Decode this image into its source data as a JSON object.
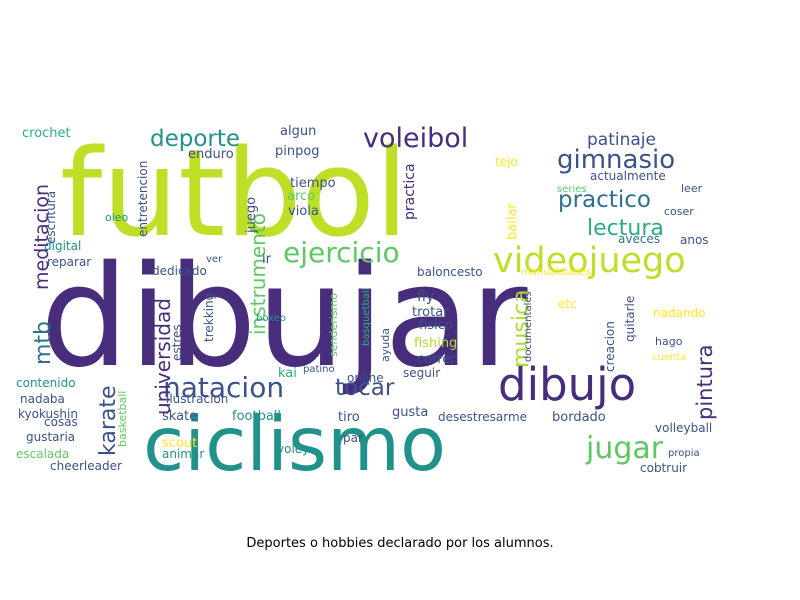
{
  "caption": "Deportes o hobbies declarado por los alumnos.",
  "palette": [
    "#440154",
    "#482878",
    "#3e4a89",
    "#31688e",
    "#26828e",
    "#1f9e89",
    "#35b779",
    "#6ece58",
    "#b5de2b",
    "#fde725"
  ],
  "words": [
    {
      "text": "futbol",
      "color": "#bddf26"
    },
    {
      "text": "dibujar",
      "color": "#472d7b"
    },
    {
      "text": "ciclismo",
      "color": "#21918c"
    },
    {
      "text": "dibujo",
      "color": "#472d7b"
    },
    {
      "text": "videojuego",
      "color": "#bddf26"
    },
    {
      "text": "ejercicio",
      "color": "#5ec962"
    },
    {
      "text": "natacion",
      "color": "#3b528b"
    },
    {
      "text": "voleibol",
      "color": "#472d7b"
    },
    {
      "text": "gimnasio",
      "color": "#3b528b"
    },
    {
      "text": "deporte",
      "color": "#21918c"
    },
    {
      "text": "practico",
      "color": "#2c728e"
    },
    {
      "text": "lectura",
      "color": "#28ae80"
    },
    {
      "text": "jugar",
      "color": "#5ec962"
    },
    {
      "text": "tocar",
      "color": "#3b528b"
    },
    {
      "text": "patinaje",
      "color": "#3b528b"
    },
    {
      "text": "instrumento",
      "color": "#5ec962"
    },
    {
      "text": "universidad",
      "color": "#472d7b"
    },
    {
      "text": "karate",
      "color": "#3b528b"
    },
    {
      "text": "mtb",
      "color": "#2c728e"
    },
    {
      "text": "meditacion",
      "color": "#472d7b"
    },
    {
      "text": "musica",
      "color": "#addc30"
    },
    {
      "text": "pintura",
      "color": "#472d7b"
    },
    {
      "text": "crochet",
      "color": "#28ae80"
    },
    {
      "text": "escritura",
      "color": "#3b528b"
    },
    {
      "text": "oleo",
      "color": "#21918c"
    },
    {
      "text": "enduro",
      "color": "#3b528b"
    },
    {
      "text": "entretencion",
      "color": "#3b528b"
    },
    {
      "text": "algun",
      "color": "#3b528b"
    },
    {
      "text": "pinpog",
      "color": "#3b528b"
    },
    {
      "text": "tiempo",
      "color": "#3b528b"
    },
    {
      "text": "arco",
      "color": "#5ec962"
    },
    {
      "text": "viola",
      "color": "#3b528b"
    },
    {
      "text": "juego",
      "color": "#3b528b"
    },
    {
      "text": "practica",
      "color": "#472d7b"
    },
    {
      "text": "tejo",
      "color": "#fde725"
    },
    {
      "text": "bailar",
      "color": "#fde725"
    },
    {
      "text": "actualmente",
      "color": "#3b528b"
    },
    {
      "text": "series",
      "color": "#5ec962"
    },
    {
      "text": "leer",
      "color": "#3b528b"
    },
    {
      "text": "coser",
      "color": "#3b528b"
    },
    {
      "text": "aveces",
      "color": "#2c728e"
    },
    {
      "text": "anos",
      "color": "#3b528b"
    },
    {
      "text": "digital",
      "color": "#21918c"
    },
    {
      "text": "reparar",
      "color": "#3b528b"
    },
    {
      "text": "dedicado",
      "color": "#3b528b"
    },
    {
      "text": "ver",
      "color": "#3b528b"
    },
    {
      "text": "ir",
      "color": "#3b528b"
    },
    {
      "text": "baloncesto",
      "color": "#3b528b"
    },
    {
      "text": "manualidades",
      "color": "#fde725"
    },
    {
      "text": "trekking",
      "color": "#3b528b"
    },
    {
      "text": "basquetball",
      "color": "#28ae80"
    },
    {
      "text": "fly",
      "color": "#3b528b"
    },
    {
      "text": "etc",
      "color": "#fde725"
    },
    {
      "text": "trotar",
      "color": "#3b528b"
    },
    {
      "text": "quitarle",
      "color": "#3b528b"
    },
    {
      "text": "nadando",
      "color": "#fde725"
    },
    {
      "text": "creacion",
      "color": "#3b528b"
    },
    {
      "text": "documentales",
      "color": "#3b528b"
    },
    {
      "text": "estres",
      "color": "#3b528b"
    },
    {
      "text": "boxeo",
      "color": "#21918c"
    },
    {
      "text": "senderismo",
      "color": "#5ec962"
    },
    {
      "text": "fisico",
      "color": "#3b528b"
    },
    {
      "text": "fishing",
      "color": "#addc30"
    },
    {
      "text": "correr",
      "color": "#3b528b"
    },
    {
      "text": "hago",
      "color": "#3b528b"
    },
    {
      "text": "cuenta",
      "color": "#fde725"
    },
    {
      "text": "ayuda",
      "color": "#3b528b"
    },
    {
      "text": "kai",
      "color": "#28ae80"
    },
    {
      "text": "patino",
      "color": "#3b528b"
    },
    {
      "text": "seguir",
      "color": "#3b528b"
    },
    {
      "text": "online",
      "color": "#3b528b"
    },
    {
      "text": "contenido",
      "color": "#21918c"
    },
    {
      "text": "nadaba",
      "color": "#3b528b"
    },
    {
      "text": "kyokushin",
      "color": "#3b528b"
    },
    {
      "text": "basketball",
      "color": "#5ec962"
    },
    {
      "text": "ilustracion",
      "color": "#3b528b"
    },
    {
      "text": "skate",
      "color": "#3b528b"
    },
    {
      "text": "football",
      "color": "#21918c"
    },
    {
      "text": "tiro",
      "color": "#3b528b"
    },
    {
      "text": "gusta",
      "color": "#3b528b"
    },
    {
      "text": "desestresarme",
      "color": "#3b528b"
    },
    {
      "text": "bordado",
      "color": "#3b528b"
    },
    {
      "text": "volleyball",
      "color": "#3b528b"
    },
    {
      "text": "gustaria",
      "color": "#3b528b"
    },
    {
      "text": "cosas",
      "color": "#3b528b"
    },
    {
      "text": "escalada",
      "color": "#5ec962"
    },
    {
      "text": "scout",
      "color": "#fde725"
    },
    {
      "text": "animar",
      "color": "#21918c"
    },
    {
      "text": "voley",
      "color": "#21918c"
    },
    {
      "text": "par",
      "color": "#3b528b"
    },
    {
      "text": "propia",
      "color": "#3b528b"
    },
    {
      "text": "cheerleader",
      "color": "#3b528b"
    },
    {
      "text": "cobtruir",
      "color": "#3b528b"
    }
  ]
}
